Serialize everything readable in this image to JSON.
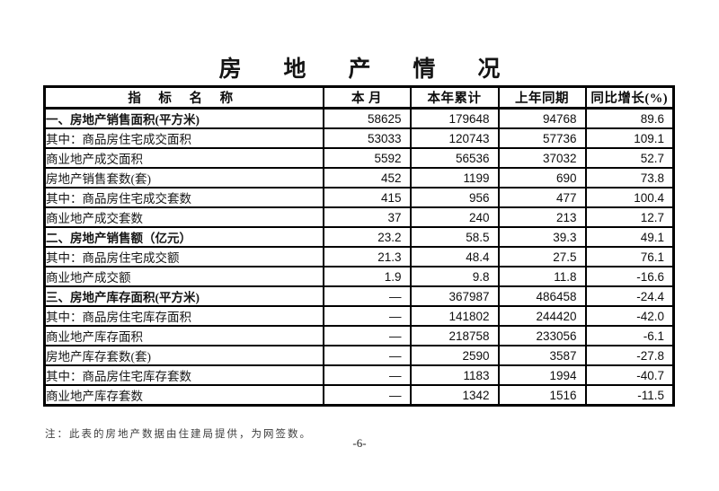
{
  "page": {
    "title": "房 地 产 情 况",
    "footnote": "注：此表的房地产数据由住建局提供，为网签数。",
    "page_number": "-6-"
  },
  "table": {
    "headers": [
      "指  标  名  称",
      "本 月",
      "本年累计",
      "上年同期",
      "同比增长(%)"
    ],
    "rows": [
      {
        "label": "一、房地产销售面积(平方米)",
        "indent": "section",
        "bold": true,
        "values": [
          "58625",
          "179648",
          "94768",
          "89.6"
        ]
      },
      {
        "label": "其中：商品房住宅成交面积",
        "indent": "sub",
        "bold": false,
        "values": [
          "53033",
          "120743",
          "57736",
          "109.1"
        ]
      },
      {
        "label": "商业地产成交面积",
        "indent": "sub2",
        "bold": false,
        "values": [
          "5592",
          "56536",
          "37032",
          "52.7"
        ]
      },
      {
        "label": "房地产销售套数(套)",
        "indent": "item",
        "bold": false,
        "values": [
          "452",
          "1199",
          "690",
          "73.8"
        ]
      },
      {
        "label": "其中：商品房住宅成交套数",
        "indent": "sub",
        "bold": false,
        "values": [
          "415",
          "956",
          "477",
          "100.4"
        ]
      },
      {
        "label": "商业地产成交套数",
        "indent": "sub2",
        "bold": false,
        "values": [
          "37",
          "240",
          "213",
          "12.7"
        ]
      },
      {
        "label": "二、房地产销售额（亿元）",
        "indent": "section",
        "bold": true,
        "values": [
          "23.2",
          "58.5",
          "39.3",
          "49.1"
        ]
      },
      {
        "label": "其中：商品房住宅成交额",
        "indent": "sub",
        "bold": false,
        "values": [
          "21.3",
          "48.4",
          "27.5",
          "76.1"
        ]
      },
      {
        "label": "商业地产成交额",
        "indent": "sub2",
        "bold": false,
        "values": [
          "1.9",
          "9.8",
          "11.8",
          "-16.6"
        ]
      },
      {
        "label": "三、房地产库存面积(平方米)",
        "indent": "section",
        "bold": true,
        "values": [
          "—",
          "367987",
          "486458",
          "-24.4"
        ]
      },
      {
        "label": "其中：商品房住宅库存面积",
        "indent": "sub",
        "bold": false,
        "values": [
          "—",
          "141802",
          "244420",
          "-42.0"
        ]
      },
      {
        "label": "商业地产库存面积",
        "indent": "sub2",
        "bold": false,
        "values": [
          "—",
          "218758",
          "233056",
          "-6.1"
        ]
      },
      {
        "label": "房地产库存套数(套)",
        "indent": "item",
        "bold": false,
        "values": [
          "—",
          "2590",
          "3587",
          "-27.8"
        ]
      },
      {
        "label": "其中：商品房住宅库存套数",
        "indent": "sub",
        "bold": false,
        "values": [
          "—",
          "1183",
          "1994",
          "-40.7"
        ]
      },
      {
        "label": "商业地产库存套数",
        "indent": "sub2",
        "bold": false,
        "values": [
          "—",
          "1342",
          "1516",
          "-11.5"
        ]
      }
    ]
  }
}
